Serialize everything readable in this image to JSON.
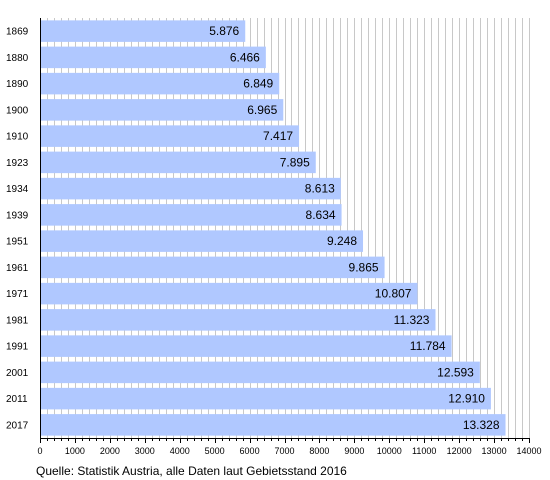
{
  "chart_data": {
    "type": "bar",
    "orientation": "horizontal",
    "categories": [
      "1869",
      "1880",
      "1890",
      "1900",
      "1910",
      "1923",
      "1934",
      "1939",
      "1951",
      "1961",
      "1971",
      "1981",
      "1991",
      "2001",
      "2011",
      "2017"
    ],
    "values": [
      5876,
      6466,
      6849,
      6965,
      7417,
      7895,
      8613,
      8634,
      9248,
      9865,
      10807,
      11323,
      11784,
      12593,
      12910,
      13328
    ],
    "value_labels": [
      "5.876",
      "6.466",
      "6.849",
      "6.965",
      "7.417",
      "7.895",
      "8.613",
      "8.634",
      "9.248",
      "9.865",
      "10.807",
      "11.323",
      "11.784",
      "12.593",
      "12.910",
      "13.328"
    ],
    "xlim": [
      0,
      14000
    ],
    "x_ticks": [
      "0",
      "1000",
      "2000",
      "3000",
      "4000",
      "5000",
      "6000",
      "7000",
      "8000",
      "9000",
      "10000",
      "11000",
      "12000",
      "13000",
      "14000"
    ],
    "minor_step": 200,
    "grid": true,
    "legend": "none",
    "colors": {
      "bar": "#b0c8ff",
      "grid": "#c8c8c8",
      "axis": "#000000"
    }
  },
  "source_note": "Quelle: Statistik Austria, alle Daten laut Gebietsstand 2016"
}
